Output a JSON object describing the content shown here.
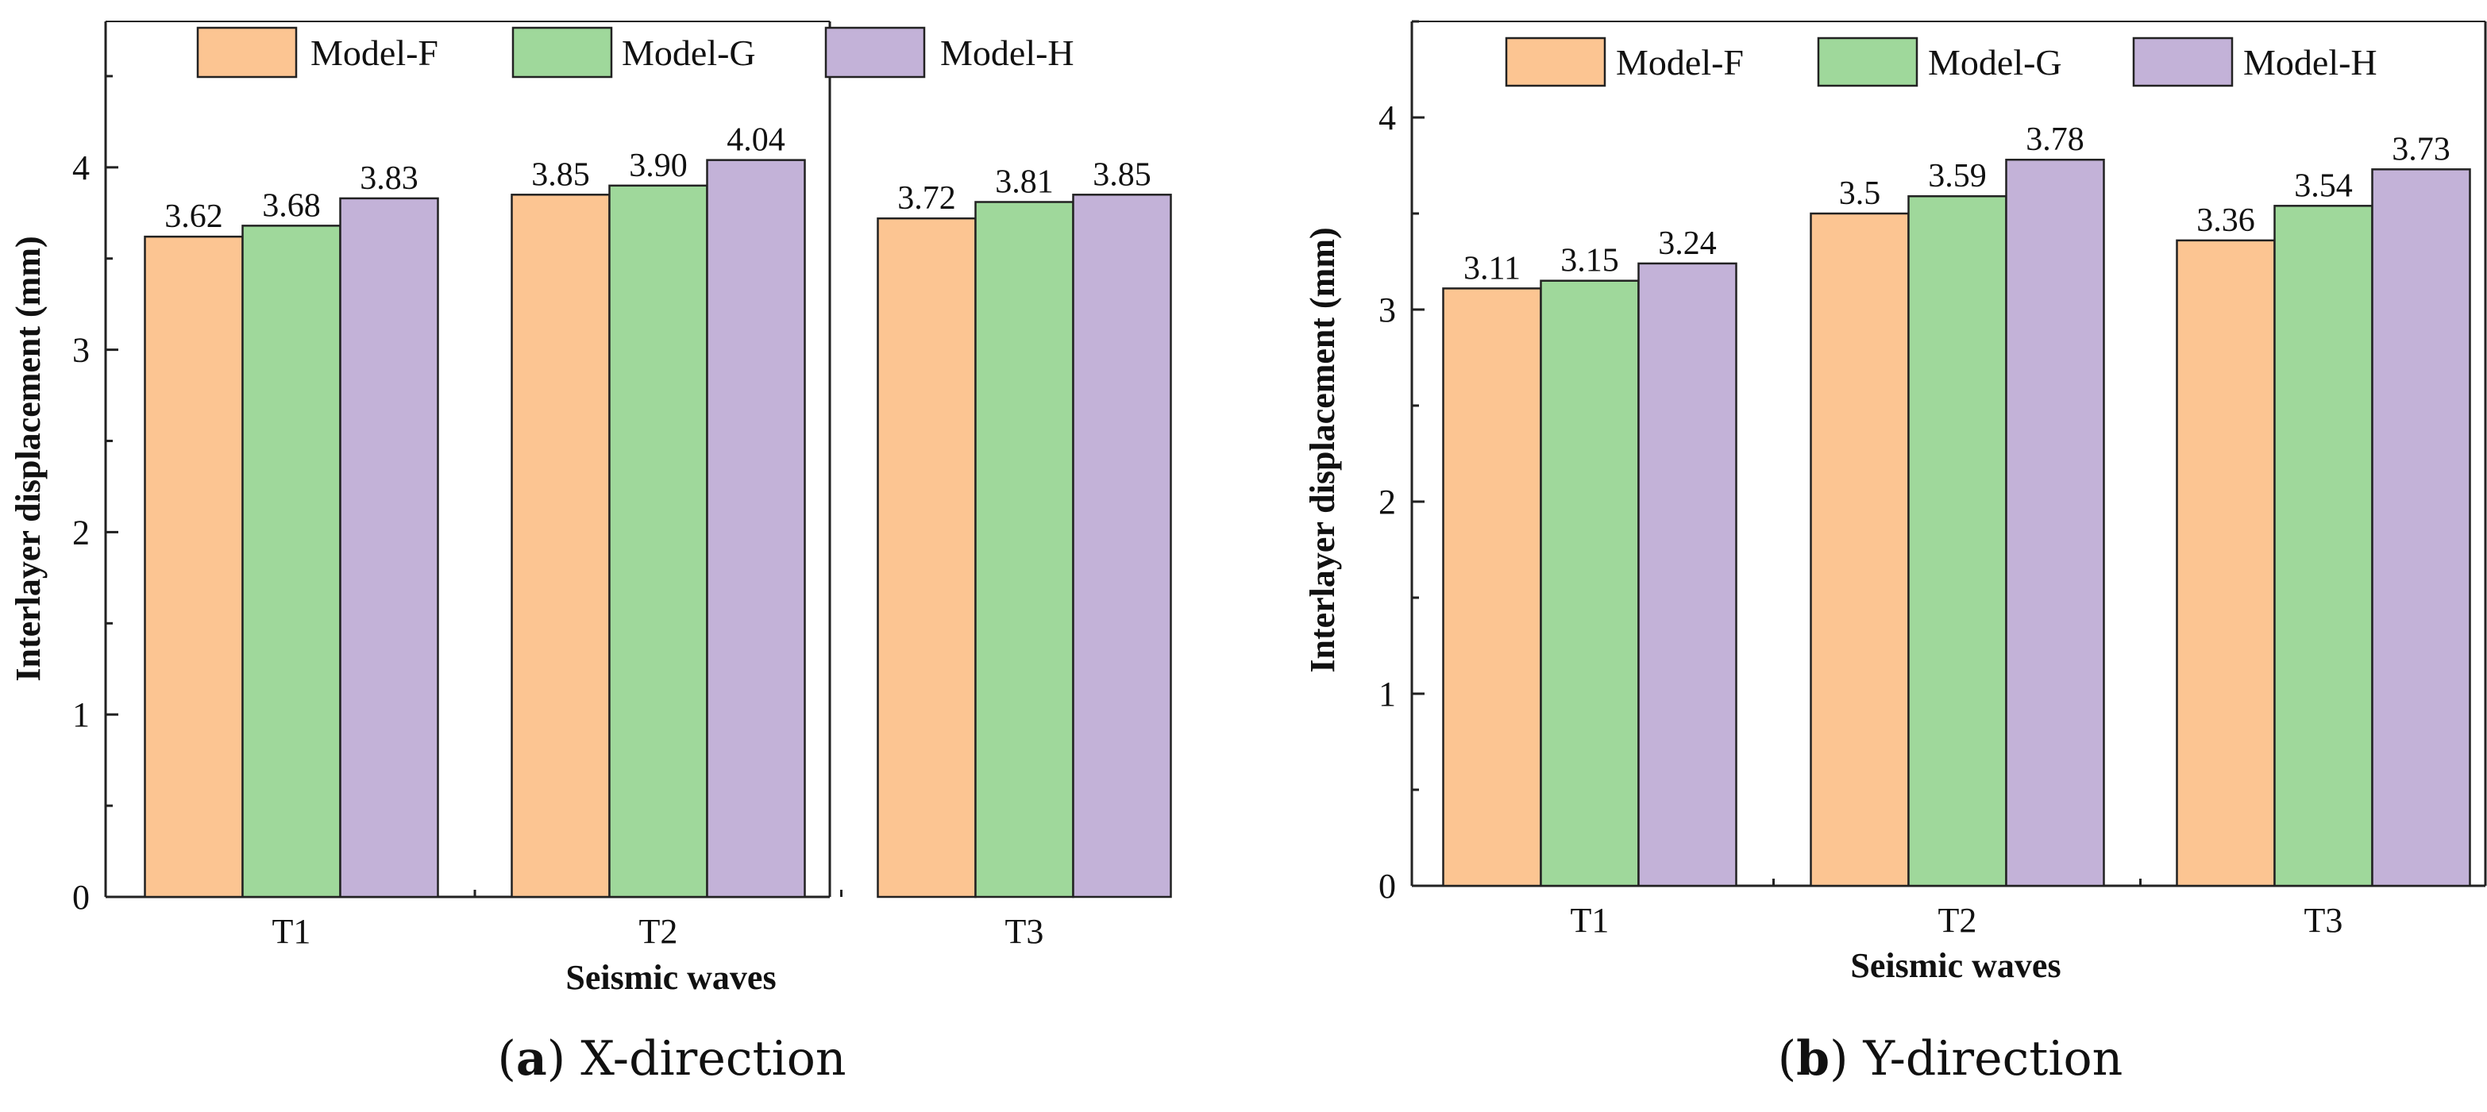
{
  "colors": {
    "Model-F": "#fcc592",
    "Model-G": "#9fd89b",
    "Model-H": "#c3b2d8"
  },
  "chart_data": [
    {
      "type": "bar",
      "panel": "a",
      "caption_letter": "a",
      "caption_text": "X-direction",
      "categories": [
        "T1",
        "T2",
        "T3"
      ],
      "series": [
        {
          "name": "Model-F",
          "values": [
            3.62,
            3.85,
            3.72
          ],
          "labels": [
            "3.62",
            "3.85",
            "3.72"
          ]
        },
        {
          "name": "Model-G",
          "values": [
            3.68,
            3.9,
            3.81
          ],
          "labels": [
            "3.68",
            "3.90",
            "3.81"
          ]
        },
        {
          "name": "Model-H",
          "values": [
            3.83,
            4.04,
            3.85
          ],
          "labels": [
            "3.83",
            "4.04",
            "3.85"
          ]
        }
      ],
      "xlabel": "Seismic waves",
      "ylabel": "Interlayer displacement (mm)",
      "ylim": [
        0,
        4.8
      ],
      "yticks": [
        0,
        1,
        2,
        3,
        4
      ],
      "legend": "top",
      "grid": false
    },
    {
      "type": "bar",
      "panel": "b",
      "caption_letter": "b",
      "caption_text": "Y-direction",
      "categories": [
        "T1",
        "T2",
        "T3"
      ],
      "series": [
        {
          "name": "Model-F",
          "values": [
            3.11,
            3.5,
            3.36
          ],
          "labels": [
            "3.11",
            "3.5",
            "3.36"
          ]
        },
        {
          "name": "Model-G",
          "values": [
            3.15,
            3.59,
            3.54
          ],
          "labels": [
            "3.15",
            "3.59",
            "3.54"
          ]
        },
        {
          "name": "Model-H",
          "values": [
            3.24,
            3.78,
            3.73
          ],
          "labels": [
            "3.24",
            "3.78",
            "3.73"
          ]
        }
      ],
      "xlabel": "Seismic waves",
      "ylabel": "Interlayer displacement (mm)",
      "ylim": [
        0,
        4.5
      ],
      "yticks": [
        0,
        1,
        2,
        3,
        4
      ],
      "legend": "top",
      "grid": false
    }
  ]
}
